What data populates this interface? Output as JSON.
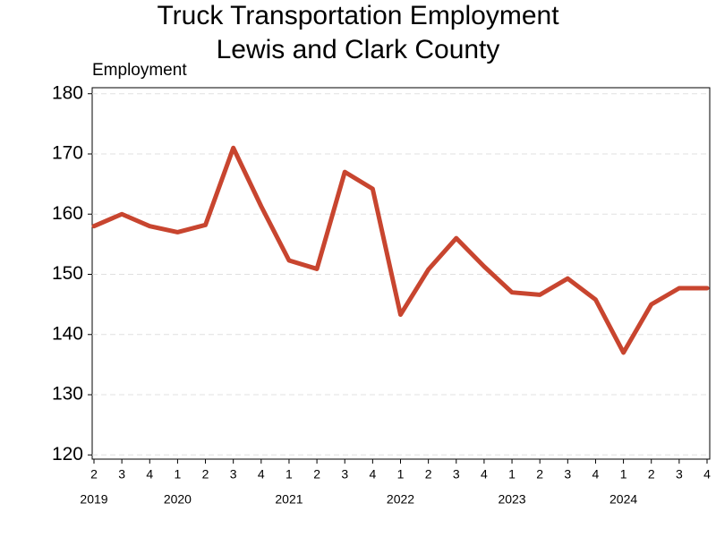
{
  "chart_data": {
    "type": "line",
    "title": [
      "Truck Transportation Employment",
      "Lewis and Clark County"
    ],
    "y_label": "Employment",
    "categories": [
      "2",
      "3",
      "4",
      "1",
      "2",
      "3",
      "4",
      "1",
      "2",
      "3",
      "4",
      "1",
      "2",
      "3",
      "4",
      "1",
      "2",
      "3",
      "4",
      "1",
      "2",
      "3",
      "4"
    ],
    "years": [
      "2019",
      "2020",
      "2021",
      "2022",
      "2023",
      "2024"
    ],
    "series": [
      {
        "name": "Employment",
        "color": "#c8452f",
        "values": [
          158,
          160,
          158,
          157,
          158.2,
          171,
          161.3,
          152.3,
          150.9,
          167,
          164.2,
          143.3,
          150.8,
          156,
          151.3,
          147,
          146.6,
          149.3,
          145.8,
          137,
          145,
          147.7,
          147.7
        ]
      }
    ],
    "ylim": [
      119.3,
      181
    ],
    "yticks": [
      120,
      130,
      140,
      150,
      160,
      170,
      180
    ],
    "grid": true
  }
}
